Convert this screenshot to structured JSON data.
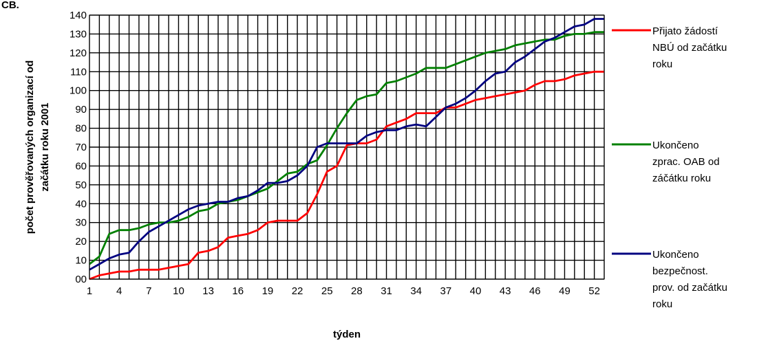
{
  "corner_label": "CB.",
  "chart_data": {
    "type": "line",
    "title": "",
    "xlabel": "týden",
    "ylabel_lines": [
      "počet prověřovaných organizací od",
      "začátku roku 2001"
    ],
    "xlim": [
      1,
      53
    ],
    "ylim": [
      0,
      140
    ],
    "x_ticks": [
      1,
      4,
      7,
      10,
      13,
      16,
      19,
      22,
      25,
      28,
      31,
      34,
      37,
      40,
      43,
      46,
      49,
      52
    ],
    "y_ticks": [
      {
        "value": 0,
        "label": "00"
      },
      {
        "value": 10,
        "label": "10"
      },
      {
        "value": 20,
        "label": "20"
      },
      {
        "value": 30,
        "label": "30"
      },
      {
        "value": 40,
        "label": "40"
      },
      {
        "value": 50,
        "label": "50"
      },
      {
        "value": 60,
        "label": "60"
      },
      {
        "value": 70,
        "label": "70"
      },
      {
        "value": 80,
        "label": "80"
      },
      {
        "value": 90,
        "label": "90"
      },
      {
        "value": 100,
        "label": "100"
      },
      {
        "value": 110,
        "label": "110"
      },
      {
        "value": 120,
        "label": "120"
      },
      {
        "value": 130,
        "label": "130"
      },
      {
        "value": 140,
        "label": "140"
      }
    ],
    "grid": true,
    "legend_position": "right",
    "x": [
      1,
      2,
      3,
      4,
      5,
      6,
      7,
      8,
      9,
      10,
      11,
      12,
      13,
      14,
      15,
      16,
      17,
      18,
      19,
      20,
      21,
      22,
      23,
      24,
      25,
      26,
      27,
      28,
      29,
      30,
      31,
      32,
      33,
      34,
      35,
      36,
      37,
      38,
      39,
      40,
      41,
      42,
      43,
      44,
      45,
      46,
      47,
      48,
      49,
      50,
      51,
      52,
      53
    ],
    "series": [
      {
        "name_lines": [
          "Přijato žádostí",
          "NBÚ od začátku",
          "roku"
        ],
        "color": "#ff0000",
        "values": [
          0,
          2,
          3,
          4,
          4,
          5,
          5,
          5,
          6,
          7,
          8,
          14,
          15,
          17,
          22,
          23,
          24,
          26,
          30,
          31,
          31,
          31,
          35,
          45,
          57,
          60,
          71,
          72,
          72,
          74,
          81,
          83,
          85,
          88,
          88,
          88,
          91,
          91,
          93,
          95,
          96,
          97,
          98,
          99,
          100,
          103,
          105,
          105,
          106,
          108,
          109,
          110,
          110
        ]
      },
      {
        "name_lines": [
          "Ukončeno",
          "zprac. OAB od",
          "záčátku roku"
        ],
        "color": "#008000",
        "values": [
          8,
          12,
          24,
          26,
          26,
          27,
          29,
          30,
          30,
          31,
          33,
          36,
          37,
          40,
          41,
          42,
          44,
          46,
          48,
          52,
          56,
          57,
          61,
          63,
          71,
          80,
          88,
          95,
          97,
          98,
          104,
          105,
          107,
          109,
          112,
          112,
          112,
          114,
          116,
          118,
          120,
          121,
          122,
          124,
          125,
          126,
          127,
          127,
          129,
          130,
          130,
          131,
          131
        ]
      },
      {
        "name_lines": [
          "Ukončeno",
          "bezpečnost.",
          "prov. od začátku",
          "roku"
        ],
        "color": "#000080",
        "values": [
          5,
          8,
          11,
          13,
          14,
          20,
          25,
          28,
          31,
          34,
          37,
          39,
          40,
          41,
          41,
          43,
          44,
          47,
          51,
          51,
          52,
          55,
          60,
          70,
          72,
          72,
          72,
          72,
          76,
          78,
          79,
          79,
          81,
          82,
          81,
          86,
          91,
          93,
          96,
          100,
          105,
          109,
          110,
          115,
          118,
          122,
          126,
          128,
          131,
          134,
          135,
          138,
          138
        ]
      }
    ]
  }
}
